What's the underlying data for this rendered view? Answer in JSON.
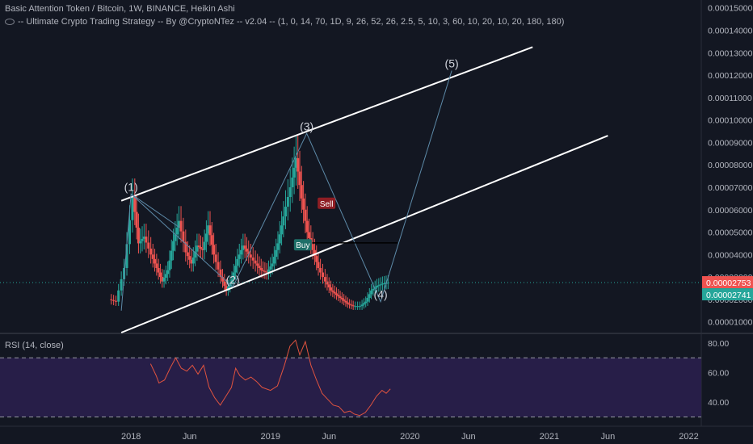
{
  "header": {
    "symbol_line": "Basic Attention Token / Bitcoin, 1W, BINANCE, Heikin Ashi",
    "strategy_line": "-- Ultimate Crypto Trading Strategy -- By @CryptoNTez -- v2.04 -- (1, 0, 14, 70, 1D, 9, 26, 52, 26, 2.5, 5, 10, 3, 60, 10, 20, 10, 20, 180, 180)"
  },
  "colors": {
    "background": "#131722",
    "up_candle": "#26a69a",
    "down_candle": "#ef5350",
    "channel": "#ffffff",
    "wave": "#5d8aa8",
    "rsi_line": "#e0533f",
    "rsi_band": "#2a1f4d",
    "axis_text": "#b2b5be",
    "current_price_red": "#ef5350",
    "current_price_teal": "#26a69a"
  },
  "chart_data": {
    "type": "candlestick",
    "price_axis": {
      "ticks": [
        "0.00015000",
        "0.00014000",
        "0.00013000",
        "0.00012000",
        "0.00011000",
        "0.00010000",
        "0.00009000",
        "0.00008000",
        "0.00007000",
        "0.00006000",
        "0.00005000",
        "0.00004000",
        "0.00003000",
        "0.00002000",
        "0.00001000"
      ],
      "range": [
        5.2e-06,
        0.0001535
      ]
    },
    "time_axis": {
      "ticks": [
        {
          "label": "2018",
          "x": 2018.0
        },
        {
          "label": "Jun",
          "x": 2018.42
        },
        {
          "label": "2019",
          "x": 2019.0
        },
        {
          "label": "Jun",
          "x": 2019.42
        },
        {
          "label": "2020",
          "x": 2020.0
        },
        {
          "label": "Jun",
          "x": 2020.42
        },
        {
          "label": "2021",
          "x": 2021.0
        },
        {
          "label": "Jun",
          "x": 2021.42
        },
        {
          "label": "2022",
          "x": 2022.0
        }
      ],
      "range": [
        2017.06,
        2022.09
      ]
    },
    "current_price": {
      "last": "0.00002753",
      "close": "0.00002741",
      "value": 2.75e-05
    },
    "price_series": [
      {
        "t": 2017.85,
        "v": 2e-05
      },
      {
        "t": 2017.9,
        "v": 1.9e-05
      },
      {
        "t": 2017.96,
        "v": 3.4e-05
      },
      {
        "t": 2018.02,
        "v": 6.6e-05
      },
      {
        "t": 2018.06,
        "v": 4.5e-05
      },
      {
        "t": 2018.1,
        "v": 4.8e-05
      },
      {
        "t": 2018.15,
        "v": 4e-05
      },
      {
        "t": 2018.19,
        "v": 3.4e-05
      },
      {
        "t": 2018.23,
        "v": 2.8e-05
      },
      {
        "t": 2018.27,
        "v": 3.3e-05
      },
      {
        "t": 2018.31,
        "v": 4.6e-05
      },
      {
        "t": 2018.35,
        "v": 5.5e-05
      },
      {
        "t": 2018.4,
        "v": 4.1e-05
      },
      {
        "t": 2018.44,
        "v": 3.6e-05
      },
      {
        "t": 2018.48,
        "v": 4.4e-05
      },
      {
        "t": 2018.52,
        "v": 4.2e-05
      },
      {
        "t": 2018.56,
        "v": 5.3e-05
      },
      {
        "t": 2018.6,
        "v": 4e-05
      },
      {
        "t": 2018.65,
        "v": 3e-05
      },
      {
        "t": 2018.69,
        "v": 2.4e-05
      },
      {
        "t": 2018.73,
        "v": 2.9e-05
      },
      {
        "t": 2018.77,
        "v": 3.8e-05
      },
      {
        "t": 2018.81,
        "v": 4.4e-05
      },
      {
        "t": 2018.85,
        "v": 4e-05
      },
      {
        "t": 2018.9,
        "v": 3.6e-05
      },
      {
        "t": 2018.94,
        "v": 3.3e-05
      },
      {
        "t": 2018.98,
        "v": 3.2e-05
      },
      {
        "t": 2019.02,
        "v": 3.6e-05
      },
      {
        "t": 2019.06,
        "v": 4.5e-05
      },
      {
        "t": 2019.1,
        "v": 5.7e-05
      },
      {
        "t": 2019.15,
        "v": 7e-05
      },
      {
        "t": 2019.19,
        "v": 8.3e-05
      },
      {
        "t": 2019.23,
        "v": 6.5e-05
      },
      {
        "t": 2019.27,
        "v": 5e-05
      },
      {
        "t": 2019.31,
        "v": 4.2e-05
      },
      {
        "t": 2019.35,
        "v": 3.4e-05
      },
      {
        "t": 2019.4,
        "v": 2.8e-05
      },
      {
        "t": 2019.44,
        "v": 2.4e-05
      },
      {
        "t": 2019.48,
        "v": 2.2e-05
      },
      {
        "t": 2019.52,
        "v": 2e-05
      },
      {
        "t": 2019.56,
        "v": 1.8e-05
      },
      {
        "t": 2019.6,
        "v": 1.7e-05
      },
      {
        "t": 2019.65,
        "v": 1.7e-05
      },
      {
        "t": 2019.69,
        "v": 1.9e-05
      },
      {
        "t": 2019.73,
        "v": 2.4e-05
      },
      {
        "t": 2019.77,
        "v": 2.6e-05
      },
      {
        "t": 2019.81,
        "v": 2.7e-05
      },
      {
        "t": 2019.85,
        "v": 2.75e-05
      }
    ],
    "channel_lines": [
      {
        "name": "upper",
        "from": {
          "t": 2017.93,
          "v": 6.4e-05
        },
        "to": {
          "t": 2020.88,
          "v": 0.0001325
        }
      },
      {
        "name": "lower",
        "from": {
          "t": 2017.93,
          "v": 5.2e-06
        },
        "to": {
          "t": 2021.42,
          "v": 9.3e-05
        }
      }
    ],
    "wave_labels": [
      {
        "label": "(1)",
        "t": 2018.0,
        "v": 6.7e-05
      },
      {
        "label": "(2)",
        "t": 2018.73,
        "v": 2.55e-05
      },
      {
        "label": "(3)",
        "t": 2019.26,
        "v": 9.4e-05
      },
      {
        "label": "(4)",
        "t": 2019.79,
        "v": 1.9e-05
      },
      {
        "label": "(5)",
        "t": 2020.3,
        "v": 0.000122
      }
    ],
    "signals": [
      {
        "label": "Buy",
        "t": 2019.18,
        "v": 4.4e-05,
        "color": "#1e6f68"
      },
      {
        "label": "Sell",
        "t": 2019.35,
        "v": 6.25e-05,
        "color": "#8f1e24"
      }
    ],
    "horizontal_line": {
      "from_t": 2019.3,
      "to_t": 2019.91,
      "v": 4.52e-05
    }
  },
  "rsi": {
    "title": "RSI (14, close)",
    "ticks": [
      "80.00",
      "60.00",
      "40.00"
    ],
    "tick_values": [
      80,
      60,
      40
    ],
    "range": [
      27,
      86
    ],
    "upper_band": 70,
    "lower_band": 30,
    "series": [
      {
        "t": 2018.14,
        "v": 66
      },
      {
        "t": 2018.18,
        "v": 58
      },
      {
        "t": 2018.2,
        "v": 53
      },
      {
        "t": 2018.24,
        "v": 55
      },
      {
        "t": 2018.28,
        "v": 63
      },
      {
        "t": 2018.32,
        "v": 70
      },
      {
        "t": 2018.36,
        "v": 63
      },
      {
        "t": 2018.4,
        "v": 61
      },
      {
        "t": 2018.44,
        "v": 65
      },
      {
        "t": 2018.48,
        "v": 59
      },
      {
        "t": 2018.52,
        "v": 65
      },
      {
        "t": 2018.56,
        "v": 50
      },
      {
        "t": 2018.6,
        "v": 43
      },
      {
        "t": 2018.64,
        "v": 38
      },
      {
        "t": 2018.68,
        "v": 44
      },
      {
        "t": 2018.72,
        "v": 50
      },
      {
        "t": 2018.75,
        "v": 63
      },
      {
        "t": 2018.78,
        "v": 58
      },
      {
        "t": 2018.82,
        "v": 55
      },
      {
        "t": 2018.86,
        "v": 57
      },
      {
        "t": 2018.9,
        "v": 54
      },
      {
        "t": 2018.94,
        "v": 50
      },
      {
        "t": 2019.0,
        "v": 48
      },
      {
        "t": 2019.05,
        "v": 51
      },
      {
        "t": 2019.1,
        "v": 65
      },
      {
        "t": 2019.14,
        "v": 78
      },
      {
        "t": 2019.18,
        "v": 82
      },
      {
        "t": 2019.21,
        "v": 72
      },
      {
        "t": 2019.25,
        "v": 81
      },
      {
        "t": 2019.29,
        "v": 65
      },
      {
        "t": 2019.33,
        "v": 55
      },
      {
        "t": 2019.37,
        "v": 46
      },
      {
        "t": 2019.41,
        "v": 42
      },
      {
        "t": 2019.45,
        "v": 38
      },
      {
        "t": 2019.49,
        "v": 37
      },
      {
        "t": 2019.53,
        "v": 33
      },
      {
        "t": 2019.57,
        "v": 34
      },
      {
        "t": 2019.6,
        "v": 32
      },
      {
        "t": 2019.64,
        "v": 31
      },
      {
        "t": 2019.68,
        "v": 33
      },
      {
        "t": 2019.72,
        "v": 38
      },
      {
        "t": 2019.76,
        "v": 44
      },
      {
        "t": 2019.8,
        "v": 48
      },
      {
        "t": 2019.83,
        "v": 46
      },
      {
        "t": 2019.86,
        "v": 49
      }
    ]
  }
}
